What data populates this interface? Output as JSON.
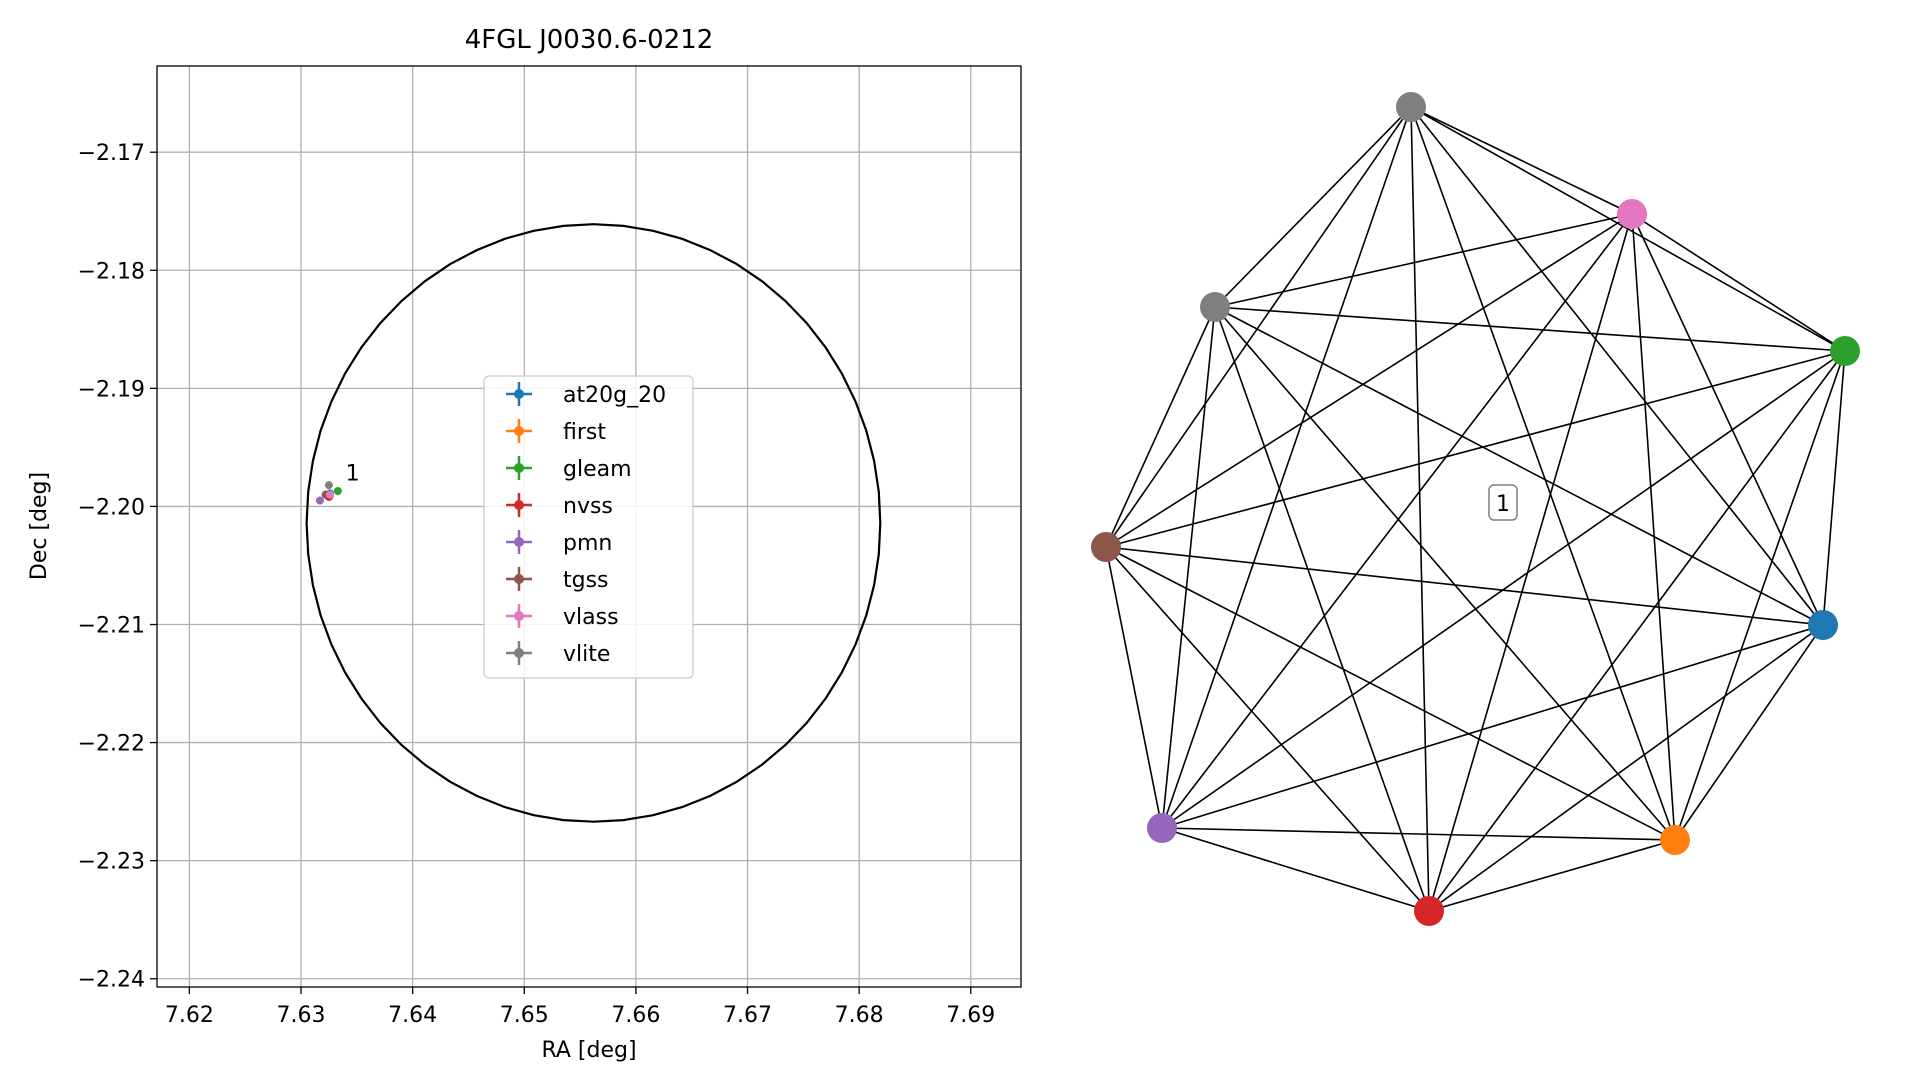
{
  "chart_data": [
    {
      "type": "scatter",
      "title": "4FGL J0030.6-0212",
      "xlabel": "RA [deg]",
      "ylabel": "Dec [deg]",
      "xlim": [
        7.6171,
        7.6945
      ],
      "ylim": [
        -2.2407,
        -2.1627
      ],
      "xticks": [
        "7.62",
        "7.63",
        "7.64",
        "7.65",
        "7.66",
        "7.67",
        "7.68",
        "7.69"
      ],
      "xtick_values": [
        7.62,
        7.63,
        7.64,
        7.65,
        7.66,
        7.67,
        7.68,
        7.69
      ],
      "yticks": [
        "−2.17",
        "−2.18",
        "−2.19",
        "−2.20",
        "−2.21",
        "−2.22",
        "−2.23",
        "−2.24"
      ],
      "ytick_values": [
        -2.17,
        -2.18,
        -2.19,
        -2.2,
        -2.21,
        -2.22,
        -2.23,
        -2.24
      ],
      "grid": true,
      "legend_placement": "center",
      "ellipse": {
        "center": [
          7.6562,
          -2.2014
        ],
        "semi_axis_ra": 0.0257,
        "semi_axis_dec": 0.0253,
        "color": "#000000"
      },
      "series": [
        {
          "name": "at20g_20",
          "color": "#1f77b4",
          "x": 7.6326,
          "y": -2.1989
        },
        {
          "name": "first",
          "color": "#ff7f0e",
          "x": 7.6326,
          "y": -2.1991
        },
        {
          "name": "gleam",
          "color": "#2ca02c",
          "x": 7.6333,
          "y": -2.1987
        },
        {
          "name": "nvss",
          "color": "#d62728",
          "x": 7.6325,
          "y": -2.1992
        },
        {
          "name": "pmn",
          "color": "#9467bd",
          "x": 7.6317,
          "y": -2.1995
        },
        {
          "name": "tgss",
          "color": "#8c564b",
          "x": 7.6322,
          "y": -2.199
        },
        {
          "name": "vlass",
          "color": "#e377c2",
          "x": 7.6326,
          "y": -2.199
        },
        {
          "name": "vlite",
          "color": "#7f7f7f",
          "x": 7.6325,
          "y": -2.1982
        }
      ],
      "annotations": [
        {
          "text": "1",
          "x": 7.634,
          "y": -2.1978
        }
      ]
    },
    {
      "type": "network",
      "label": "1",
      "edge_color": "#000000",
      "nodes": [
        {
          "id": "vlite_a",
          "color": "#7f7f7f"
        },
        {
          "id": "vlass",
          "color": "#e377c2"
        },
        {
          "id": "vlite_b",
          "color": "#7f7f7f"
        },
        {
          "id": "gleam",
          "color": "#2ca02c"
        },
        {
          "id": "tgss",
          "color": "#8c564b"
        },
        {
          "id": "at20g_20",
          "color": "#1f77b4"
        },
        {
          "id": "pmn",
          "color": "#9467bd"
        },
        {
          "id": "first",
          "color": "#ff7f0e"
        },
        {
          "id": "nvss",
          "color": "#d62728"
        }
      ],
      "complete_graph": true
    }
  ]
}
